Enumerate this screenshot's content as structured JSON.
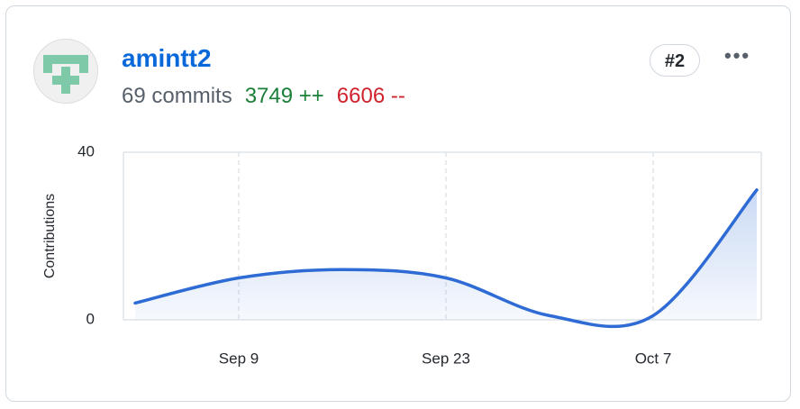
{
  "user": {
    "login": "amintt2",
    "commits": "69 commits",
    "additions": "3749 ++",
    "deletions": "6606 --",
    "rank": "#2",
    "menu": "•••"
  },
  "chart_data": {
    "type": "line",
    "y_label": "Contributions",
    "categories": [
      null,
      "Sep 9",
      null,
      "Sep 23",
      null,
      "Oct 7",
      null
    ],
    "series": [
      {
        "color": "#2e6bd4",
        "values": [
          4,
          10,
          12,
          10,
          1,
          1,
          31
        ]
      }
    ],
    "ylim": [
      0,
      40
    ],
    "yticks": [
      0,
      40
    ],
    "grid": true
  }
}
